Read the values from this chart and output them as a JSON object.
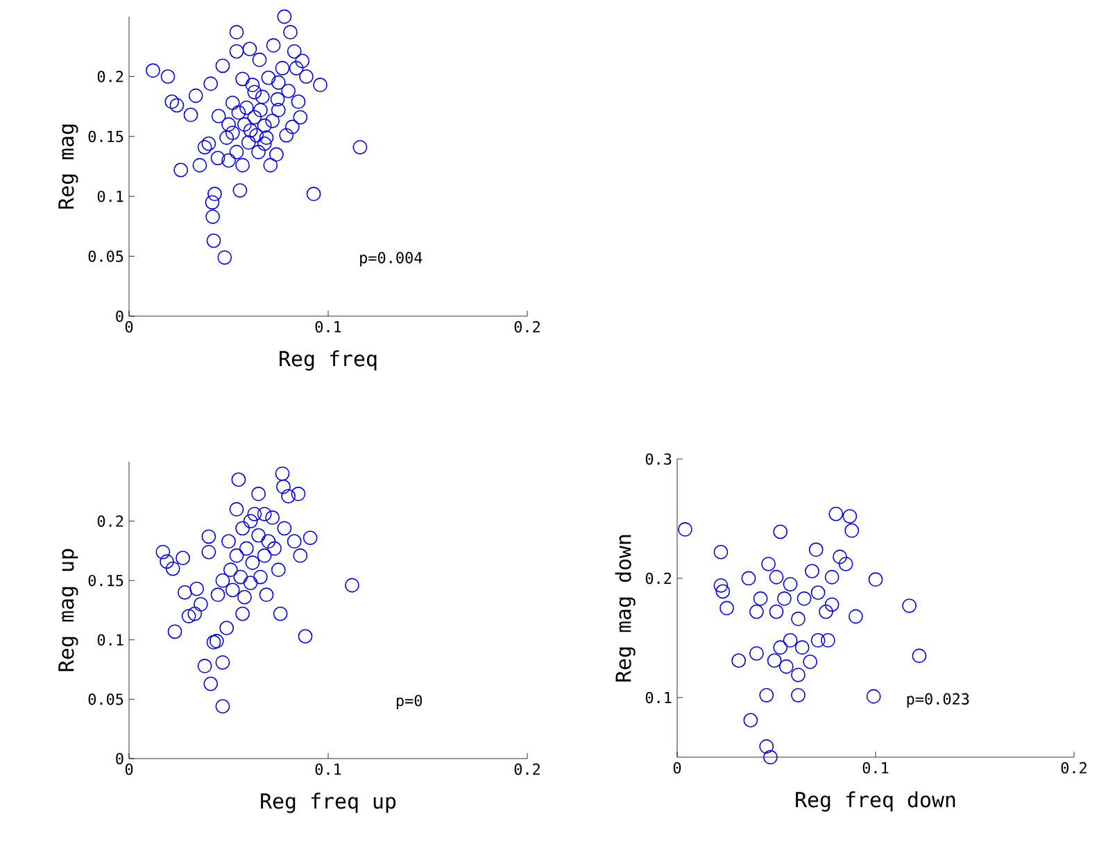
{
  "chart_data": [
    {
      "type": "scatter",
      "xlabel": "Reg freq",
      "ylabel": "Reg mag",
      "annotations": [
        "p=0.004"
      ],
      "marker": "circle",
      "xlim": [
        0,
        0.2
      ],
      "xticks": [
        0,
        0.1,
        0.2
      ],
      "ylim": [
        0,
        0.25
      ],
      "yticks": [
        0,
        0.05,
        0.1,
        0.15,
        0.2
      ],
      "series": [
        {
          "color": "#0000ff",
          "x": [
            0.012,
            0.0195,
            0.0215,
            0.024,
            0.026,
            0.031,
            0.0335,
            0.0355,
            0.038,
            0.04,
            0.041,
            0.0418,
            0.042,
            0.0425,
            0.043,
            0.0446,
            0.045,
            0.047,
            0.048,
            0.05,
            0.05,
            0.054,
            0.054,
            0.0557,
            0.057,
            0.059,
            0.0606,
            0.062,
            0.064,
            0.0655,
            0.067,
            0.068,
            0.07,
            0.071,
            0.0725,
            0.0746,
            0.078,
            0.081,
            0.083,
            0.085,
            0.086,
            0.0927,
            0.096,
            0.116,
            0.052,
            0.055,
            0.058,
            0.061,
            0.063,
            0.066,
            0.069,
            0.072,
            0.075,
            0.077,
            0.08,
            0.049,
            0.052,
            0.065,
            0.068,
            0.06,
            0.063,
            0.057,
            0.082,
            0.084,
            0.087,
            0.089,
            0.074,
            0.054,
            0.079,
            0.075
          ],
          "values": [
            0.205,
            0.2,
            0.179,
            0.176,
            0.122,
            0.168,
            0.184,
            0.126,
            0.141,
            0.144,
            0.194,
            0.095,
            0.083,
            0.063,
            0.102,
            0.132,
            0.167,
            0.209,
            0.049,
            0.16,
            0.13,
            0.221,
            0.237,
            0.105,
            0.126,
            0.174,
            0.223,
            0.193,
            0.151,
            0.214,
            0.183,
            0.159,
            0.199,
            0.126,
            0.226,
            0.181,
            0.25,
            0.237,
            0.221,
            0.179,
            0.166,
            0.102,
            0.193,
            0.141,
            0.178,
            0.17,
            0.16,
            0.155,
            0.166,
            0.172,
            0.149,
            0.163,
            0.195,
            0.207,
            0.188,
            0.149,
            0.153,
            0.137,
            0.144,
            0.145,
            0.187,
            0.198,
            0.158,
            0.207,
            0.213,
            0.2,
            0.135,
            0.137,
            0.151,
            0.172
          ]
        }
      ]
    },
    {
      "type": "scatter",
      "xlabel": "Reg freq up",
      "ylabel": "Reg mag up",
      "annotations": [
        "p=0"
      ],
      "marker": "circle",
      "xlim": [
        0,
        0.2
      ],
      "xticks": [
        0,
        0.1,
        0.2
      ],
      "ylim": [
        0,
        0.25
      ],
      "yticks": [
        0,
        0.05,
        0.1,
        0.15,
        0.2
      ],
      "series": [
        {
          "color": "#0000ff",
          "x": [
            0.017,
            0.019,
            0.022,
            0.023,
            0.027,
            0.028,
            0.03,
            0.033,
            0.034,
            0.036,
            0.038,
            0.04,
            0.04,
            0.041,
            0.0425,
            0.044,
            0.047,
            0.0446,
            0.047,
            0.049,
            0.051,
            0.054,
            0.055,
            0.057,
            0.061,
            0.065,
            0.068,
            0.073,
            0.077,
            0.0775,
            0.08,
            0.085,
            0.0885,
            0.091,
            0.086,
            0.076,
            0.112,
            0.05,
            0.054,
            0.057,
            0.059,
            0.062,
            0.065,
            0.068,
            0.07,
            0.056,
            0.061,
            0.066,
            0.052,
            0.075,
            0.078,
            0.072,
            0.063,
            0.047,
            0.058,
            0.069,
            0.083
          ],
          "values": [
            0.174,
            0.166,
            0.16,
            0.107,
            0.169,
            0.14,
            0.12,
            0.122,
            0.143,
            0.13,
            0.078,
            0.187,
            0.174,
            0.063,
            0.098,
            0.099,
            0.044,
            0.138,
            0.081,
            0.11,
            0.159,
            0.21,
            0.235,
            0.122,
            0.2,
            0.223,
            0.206,
            0.177,
            0.24,
            0.229,
            0.221,
            0.223,
            0.103,
            0.186,
            0.171,
            0.122,
            0.146,
            0.183,
            0.171,
            0.194,
            0.177,
            0.165,
            0.188,
            0.171,
            0.183,
            0.153,
            0.148,
            0.153,
            0.142,
            0.159,
            0.194,
            0.203,
            0.206,
            0.15,
            0.136,
            0.138,
            0.183
          ]
        }
      ]
    },
    {
      "type": "scatter",
      "xlabel": "Reg freq down",
      "ylabel": "Reg mag down",
      "annotations": [
        "p=0.023"
      ],
      "marker": "circle",
      "xlim": [
        0,
        0.2
      ],
      "xticks": [
        0,
        0.1,
        0.2
      ],
      "ylim": [
        0.05,
        0.3
      ],
      "yticks": [
        0.1,
        0.2,
        0.3
      ],
      "series": [
        {
          "color": "#0000ff",
          "x": [
            0.004,
            0.022,
            0.022,
            0.023,
            0.025,
            0.031,
            0.036,
            0.037,
            0.04,
            0.04,
            0.045,
            0.045,
            0.046,
            0.047,
            0.052,
            0.055,
            0.061,
            0.067,
            0.08,
            0.087,
            0.088,
            0.09,
            0.1,
            0.099,
            0.117,
            0.122,
            0.05,
            0.054,
            0.057,
            0.061,
            0.064,
            0.068,
            0.071,
            0.075,
            0.078,
            0.082,
            0.057,
            0.063,
            0.071,
            0.052,
            0.049,
            0.078,
            0.085,
            0.07,
            0.05,
            0.042,
            0.076,
            0.061
          ],
          "values": [
            0.241,
            0.222,
            0.194,
            0.189,
            0.175,
            0.131,
            0.2,
            0.081,
            0.172,
            0.137,
            0.059,
            0.102,
            0.212,
            0.05,
            0.239,
            0.126,
            0.102,
            0.13,
            0.254,
            0.252,
            0.24,
            0.168,
            0.199,
            0.101,
            0.177,
            0.135,
            0.172,
            0.183,
            0.195,
            0.166,
            0.183,
            0.206,
            0.188,
            0.172,
            0.201,
            0.218,
            0.148,
            0.142,
            0.148,
            0.142,
            0.131,
            0.178,
            0.212,
            0.224,
            0.201,
            0.183,
            0.148,
            0.119
          ]
        }
      ]
    }
  ]
}
